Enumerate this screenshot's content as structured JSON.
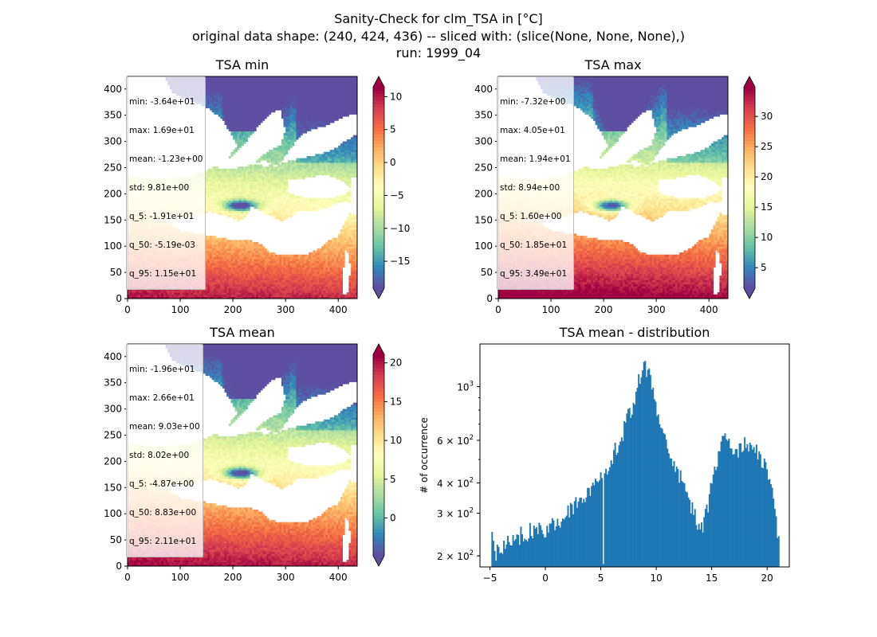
{
  "figure": {
    "title_line1": "Sanity-Check for clm_TSA in [°C]",
    "title_line2": "original data shape: (240, 424, 436) -- sliced with: (slice(None, None, None),)",
    "title_line3": "run: 1999_04"
  },
  "colormap": "Spectral_r",
  "colors": {
    "histogram_bar": "#1f77b4",
    "no_data": "#ffffff"
  },
  "chart_data": [
    {
      "type": "heatmap",
      "title": "TSA min",
      "x_ticks": [
        "0",
        "100",
        "200",
        "300",
        "400"
      ],
      "y_ticks": [
        "0",
        "50",
        "100",
        "150",
        "200",
        "250",
        "300",
        "350",
        "400"
      ],
      "xlim": [
        0,
        436
      ],
      "ylim": [
        0,
        424
      ],
      "colorbar": {
        "ticks": [
          "10",
          "5",
          "0",
          "−5",
          "−10",
          "−15"
        ],
        "tick_values": [
          10,
          5,
          0,
          -5,
          -10,
          -15
        ],
        "range": [
          -19.1,
          11.5
        ],
        "extend": "both"
      },
      "stats": [
        "min: -3.64e+01",
        "max: 1.69e+01",
        "mean: -1.23e+00",
        "std: 9.81e+00",
        "q_5: -1.91e+01",
        "q_50: -5.19e-03",
        "q_95: 1.15e+01"
      ]
    },
    {
      "type": "heatmap",
      "title": "TSA max",
      "x_ticks": [
        "0",
        "100",
        "200",
        "300",
        "400"
      ],
      "y_ticks": [
        "0",
        "50",
        "100",
        "150",
        "200",
        "250",
        "300",
        "350",
        "400"
      ],
      "xlim": [
        0,
        436
      ],
      "ylim": [
        0,
        424
      ],
      "colorbar": {
        "ticks": [
          "30",
          "25",
          "20",
          "15",
          "10",
          "5"
        ],
        "tick_values": [
          30,
          25,
          20,
          15,
          10,
          5
        ],
        "range": [
          1.6,
          34.9
        ],
        "extend": "both"
      },
      "stats": [
        "min: -7.32e+00",
        "max: 4.05e+01",
        "mean: 1.94e+01",
        "std: 8.94e+00",
        "q_5: 1.60e+00",
        "q_50: 1.85e+01",
        "q_95: 3.49e+01"
      ]
    },
    {
      "type": "heatmap",
      "title": "TSA mean",
      "x_ticks": [
        "0",
        "100",
        "200",
        "300",
        "400"
      ],
      "y_ticks": [
        "0",
        "50",
        "100",
        "150",
        "200",
        "250",
        "300",
        "350",
        "400"
      ],
      "xlim": [
        0,
        436
      ],
      "ylim": [
        0,
        424
      ],
      "colorbar": {
        "ticks": [
          "20",
          "15",
          "10",
          "5",
          "0"
        ],
        "tick_values": [
          20,
          15,
          10,
          5,
          0
        ],
        "range": [
          -4.87,
          21.1
        ],
        "extend": "both"
      },
      "stats": [
        "min: -1.96e+01",
        "max: 2.66e+01",
        "mean: 9.03e+00",
        "std: 8.02e+00",
        "q_5: -4.87e+00",
        "q_50: 8.83e+00",
        "q_95: 2.11e+01"
      ]
    },
    {
      "type": "bar",
      "title": "TSA mean - distribution",
      "ylabel": "# of occurrence",
      "xlabel": "",
      "y_scale": "log",
      "xlim": [
        -5.9,
        22.0
      ],
      "ylim": [
        180,
        1500
      ],
      "x_ticks": [
        "−5",
        "0",
        "5",
        "10",
        "15",
        "20"
      ],
      "x_tick_values": [
        -5,
        0,
        5,
        10,
        15,
        20
      ],
      "y_ticks": [
        {
          "value": 1000,
          "base": "10",
          "exp": "3"
        },
        {
          "value": 600,
          "base": "6 × 10",
          "exp": "2"
        },
        {
          "value": 400,
          "base": "4 × 10",
          "exp": "2"
        },
        {
          "value": 300,
          "base": "3 × 10",
          "exp": "2"
        },
        {
          "value": 200,
          "base": "2 × 10",
          "exp": "2"
        }
      ],
      "bin_range": [
        -4.87,
        21.1
      ],
      "bin_count": 220,
      "envelope": {
        "x": [
          -4.87,
          -4.6,
          -4.0,
          -3.0,
          -2.0,
          -1.0,
          0.0,
          1.0,
          2.0,
          3.0,
          4.0,
          5.0,
          6.0,
          7.0,
          7.8,
          8.3,
          8.8,
          9.3,
          9.8,
          10.5,
          11.2,
          11.8,
          12.5,
          13.3,
          14.0,
          14.6,
          15.2,
          15.8,
          16.4,
          17.0,
          17.6,
          18.2,
          18.8,
          19.4,
          20.0,
          20.5,
          21.1
        ],
        "y": [
          250,
          205,
          215,
          240,
          245,
          255,
          260,
          275,
          305,
          340,
          380,
          430,
          510,
          650,
          830,
          1000,
          1200,
          1150,
          900,
          700,
          530,
          460,
          400,
          310,
          250,
          320,
          450,
          570,
          620,
          560,
          540,
          590,
          560,
          500,
          450,
          350,
          220
        ]
      },
      "dip": {
        "x": 5.2,
        "y": 185
      }
    }
  ]
}
